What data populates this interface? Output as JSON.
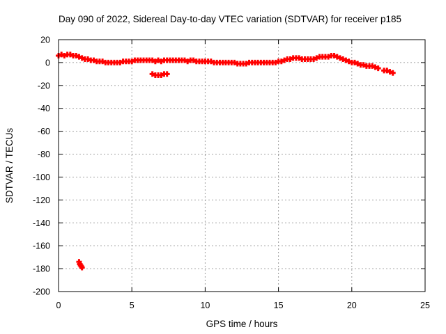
{
  "chart_data": {
    "type": "scatter",
    "title": "Day 090 of 2022, Sidereal Day-to-day VTEC variation (SDTVAR) for receiver p185",
    "xlabel": "GPS time / hours",
    "ylabel": "SDTVAR / TECUs",
    "xlim": [
      0,
      25
    ],
    "ylim": [
      -200,
      20
    ],
    "xticks": [
      0,
      5,
      10,
      15,
      20,
      25
    ],
    "yticks": [
      20,
      0,
      -20,
      -40,
      -60,
      -80,
      -100,
      -120,
      -140,
      -160,
      -180,
      -200
    ],
    "xtick_labels": [
      "0",
      "5",
      "10",
      "15",
      "20",
      "25"
    ],
    "ytick_labels": [
      "20",
      "0",
      "-20",
      "-40",
      "-60",
      "-80",
      "-100",
      "-120",
      "-140",
      "-160",
      "-180",
      "-200"
    ],
    "grid": true,
    "marker": "plus",
    "series": [
      {
        "name": "SDTVAR",
        "color": "#ff0000",
        "points": [
          [
            0.0,
            6
          ],
          [
            0.2,
            7
          ],
          [
            0.4,
            6
          ],
          [
            0.6,
            7
          ],
          [
            0.8,
            7
          ],
          [
            1.0,
            6
          ],
          [
            1.2,
            6
          ],
          [
            1.4,
            5
          ],
          [
            1.6,
            4
          ],
          [
            1.8,
            3
          ],
          [
            2.0,
            3
          ],
          [
            2.2,
            2
          ],
          [
            2.4,
            2
          ],
          [
            2.6,
            1
          ],
          [
            2.8,
            1
          ],
          [
            3.0,
            1
          ],
          [
            3.2,
            0
          ],
          [
            3.4,
            0
          ],
          [
            3.6,
            0
          ],
          [
            3.8,
            0
          ],
          [
            4.0,
            0
          ],
          [
            4.2,
            0
          ],
          [
            4.4,
            1
          ],
          [
            4.6,
            1
          ],
          [
            4.8,
            1
          ],
          [
            5.0,
            1
          ],
          [
            5.2,
            2
          ],
          [
            5.4,
            2
          ],
          [
            5.6,
            2
          ],
          [
            5.8,
            2
          ],
          [
            6.0,
            2
          ],
          [
            6.2,
            2
          ],
          [
            6.4,
            2
          ],
          [
            6.6,
            1
          ],
          [
            6.8,
            2
          ],
          [
            7.0,
            1
          ],
          [
            7.2,
            2
          ],
          [
            7.4,
            2
          ],
          [
            7.6,
            2
          ],
          [
            7.8,
            2
          ],
          [
            8.0,
            2
          ],
          [
            8.2,
            2
          ],
          [
            8.4,
            2
          ],
          [
            8.6,
            2
          ],
          [
            8.8,
            1
          ],
          [
            9.0,
            2
          ],
          [
            9.2,
            2
          ],
          [
            9.4,
            1
          ],
          [
            9.6,
            1
          ],
          [
            9.8,
            1
          ],
          [
            10.0,
            1
          ],
          [
            10.2,
            1
          ],
          [
            10.4,
            1
          ],
          [
            10.6,
            0
          ],
          [
            10.8,
            0
          ],
          [
            11.0,
            0
          ],
          [
            11.2,
            0
          ],
          [
            11.4,
            0
          ],
          [
            11.6,
            0
          ],
          [
            11.8,
            0
          ],
          [
            12.0,
            0
          ],
          [
            12.2,
            -1
          ],
          [
            12.4,
            -1
          ],
          [
            12.6,
            -1
          ],
          [
            12.8,
            -1
          ],
          [
            13.0,
            0
          ],
          [
            13.2,
            0
          ],
          [
            13.4,
            0
          ],
          [
            13.6,
            0
          ],
          [
            13.8,
            0
          ],
          [
            14.0,
            0
          ],
          [
            14.2,
            0
          ],
          [
            14.4,
            0
          ],
          [
            14.6,
            0
          ],
          [
            14.8,
            0
          ],
          [
            15.0,
            1
          ],
          [
            15.2,
            1
          ],
          [
            15.4,
            2
          ],
          [
            15.6,
            3
          ],
          [
            15.8,
            3
          ],
          [
            16.0,
            4
          ],
          [
            16.2,
            4
          ],
          [
            16.4,
            4
          ],
          [
            16.6,
            3
          ],
          [
            16.8,
            3
          ],
          [
            17.0,
            3
          ],
          [
            17.2,
            3
          ],
          [
            17.4,
            3
          ],
          [
            17.6,
            4
          ],
          [
            17.8,
            5
          ],
          [
            18.0,
            5
          ],
          [
            18.2,
            5
          ],
          [
            18.4,
            5
          ],
          [
            18.6,
            6
          ],
          [
            18.8,
            6
          ],
          [
            19.0,
            5
          ],
          [
            19.2,
            4
          ],
          [
            19.4,
            3
          ],
          [
            19.6,
            2
          ],
          [
            19.8,
            1
          ],
          [
            20.0,
            0
          ],
          [
            20.2,
            0
          ],
          [
            20.4,
            -1
          ],
          [
            20.6,
            -2
          ],
          [
            20.8,
            -2
          ],
          [
            21.0,
            -3
          ],
          [
            21.2,
            -3
          ],
          [
            21.4,
            -3
          ],
          [
            21.6,
            -4
          ],
          [
            21.8,
            -5
          ],
          [
            22.2,
            -7
          ],
          [
            22.4,
            -7
          ],
          [
            22.6,
            -8
          ],
          [
            22.8,
            -9
          ],
          [
            6.4,
            -10
          ],
          [
            6.6,
            -11
          ],
          [
            6.8,
            -11
          ],
          [
            7.0,
            -11
          ],
          [
            7.2,
            -10
          ],
          [
            7.4,
            -10
          ],
          [
            1.4,
            -174
          ],
          [
            1.45,
            -176
          ],
          [
            1.5,
            -177
          ],
          [
            1.55,
            -178
          ],
          [
            1.6,
            -179
          ]
        ]
      }
    ]
  }
}
